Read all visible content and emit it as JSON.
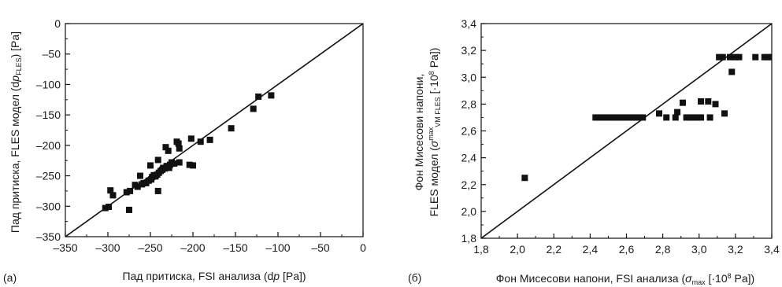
{
  "figure": {
    "panels": [
      {
        "panel_label": "(a)",
        "xlabel": {
          "pre": "Пад притиска, FSI анализа (d",
          "italic": "p",
          "post": " [Pa])"
        },
        "ylabel": {
          "pre": "Пад притиска, FLES модел (d",
          "italic": "p",
          "sub": "FLES",
          "post": ") [Pa]"
        }
      },
      {
        "panel_label": "(б)",
        "xlabel": {
          "pre": "Фон Мисесови напони, FSI анализа (",
          "sym": "σ",
          "sub": "max",
          "post": " [·10",
          "sup": "8",
          "post2": " Pa])"
        },
        "ylabel_line1": "Фон Мисесови напони,",
        "ylabel_line2": {
          "pre": "FLES модел (",
          "sym": "σ",
          "sup": "max",
          "sub": "VM FLES",
          "post": " [·10",
          "sup2": "8",
          "post2": " Pa])"
        }
      }
    ]
  },
  "chart_data": [
    {
      "type": "scatter",
      "panel": "(a)",
      "xlim": [
        -350,
        0
      ],
      "ylim": [
        -350,
        0
      ],
      "xticks": [
        -350,
        -300,
        -250,
        -200,
        -150,
        -100,
        -50,
        0
      ],
      "yticks": [
        -350,
        -300,
        -250,
        -200,
        -150,
        -100,
        -50,
        0
      ],
      "xtick_labels": [
        "–350",
        "–300",
        "–250",
        "–200",
        "–150",
        "–100",
        "–50",
        "0"
      ],
      "ytick_labels": [
        "–350",
        "–300",
        "–250",
        "–200",
        "–150",
        "–100",
        "–50",
        "0"
      ],
      "grid": false,
      "reference_line": "y = x",
      "marker": "square",
      "points": [
        [
          -303,
          -303
        ],
        [
          -299,
          -301
        ],
        [
          -297,
          -274
        ],
        [
          -294,
          -282
        ],
        [
          -278,
          -277
        ],
        [
          -275,
          -306
        ],
        [
          -274,
          -275
        ],
        [
          -268,
          -265
        ],
        [
          -265,
          -268
        ],
        [
          -262,
          -250
        ],
        [
          -260,
          -264
        ],
        [
          -258,
          -262
        ],
        [
          -255,
          -262
        ],
        [
          -252,
          -258
        ],
        [
          -250,
          -233
        ],
        [
          -249,
          -256
        ],
        [
          -248,
          -252
        ],
        [
          -246,
          -249
        ],
        [
          -244,
          -251
        ],
        [
          -242,
          -248
        ],
        [
          -241,
          -224
        ],
        [
          -241,
          -275
        ],
        [
          -240,
          -245
        ],
        [
          -238,
          -242
        ],
        [
          -236,
          -240
        ],
        [
          -235,
          -237
        ],
        [
          -233,
          -238
        ],
        [
          -232,
          -203
        ],
        [
          -231,
          -234
        ],
        [
          -229,
          -209
        ],
        [
          -228,
          -237
        ],
        [
          -227,
          -232
        ],
        [
          -225,
          -228
        ],
        [
          -222,
          -230
        ],
        [
          -219,
          -194
        ],
        [
          -217,
          -197
        ],
        [
          -216,
          -205
        ],
        [
          -216,
          -228
        ],
        [
          -204,
          -232
        ],
        [
          -202,
          -189
        ],
        [
          -200,
          -233
        ],
        [
          -191,
          -194
        ],
        [
          -180,
          -191
        ],
        [
          -155,
          -172
        ],
        [
          -129,
          -140
        ],
        [
          -123,
          -120
        ],
        [
          -108,
          -118
        ]
      ]
    },
    {
      "type": "scatter",
      "panel": "(б)",
      "xlim": [
        1.8,
        3.4
      ],
      "ylim": [
        1.8,
        3.4
      ],
      "xticks": [
        1.8,
        2.0,
        2.2,
        2.4,
        2.6,
        2.8,
        3.0,
        3.2,
        3.4
      ],
      "yticks": [
        1.8,
        2.0,
        2.2,
        2.4,
        2.6,
        2.8,
        3.0,
        3.2,
        3.4
      ],
      "xtick_labels": [
        "1,8",
        "2,0",
        "2,2",
        "2,4",
        "2,6",
        "2,8",
        "3,0",
        "3,2",
        "3,4"
      ],
      "ytick_labels": [
        "1,8",
        "2,0",
        "2,2",
        "2,4",
        "2,6",
        "2,8",
        "3,0",
        "3,2",
        "3,4"
      ],
      "grid": false,
      "reference_line": "y = x",
      "marker": "square",
      "points": [
        [
          2.04,
          2.25
        ],
        [
          2.43,
          2.7
        ],
        [
          2.45,
          2.7
        ],
        [
          2.47,
          2.7
        ],
        [
          2.49,
          2.7
        ],
        [
          2.51,
          2.7
        ],
        [
          2.53,
          2.7
        ],
        [
          2.55,
          2.7
        ],
        [
          2.57,
          2.7
        ],
        [
          2.59,
          2.7
        ],
        [
          2.61,
          2.7
        ],
        [
          2.63,
          2.7
        ],
        [
          2.65,
          2.7
        ],
        [
          2.67,
          2.7
        ],
        [
          2.69,
          2.7
        ],
        [
          2.78,
          2.73
        ],
        [
          2.82,
          2.7
        ],
        [
          2.87,
          2.7
        ],
        [
          2.88,
          2.74
        ],
        [
          2.91,
          2.81
        ],
        [
          2.93,
          2.7
        ],
        [
          2.95,
          2.7
        ],
        [
          2.97,
          2.7
        ],
        [
          2.99,
          2.7
        ],
        [
          3.01,
          2.7
        ],
        [
          3.01,
          2.82
        ],
        [
          3.05,
          2.82
        ],
        [
          3.06,
          2.7
        ],
        [
          3.09,
          2.8
        ],
        [
          3.11,
          3.15
        ],
        [
          3.13,
          3.15
        ],
        [
          3.14,
          2.73
        ],
        [
          3.17,
          3.15
        ],
        [
          3.18,
          3.04
        ],
        [
          3.2,
          3.15
        ],
        [
          3.22,
          3.15
        ],
        [
          3.31,
          3.15
        ],
        [
          3.36,
          3.15
        ],
        [
          3.38,
          3.15
        ],
        [
          3.4,
          3.15
        ]
      ]
    }
  ]
}
